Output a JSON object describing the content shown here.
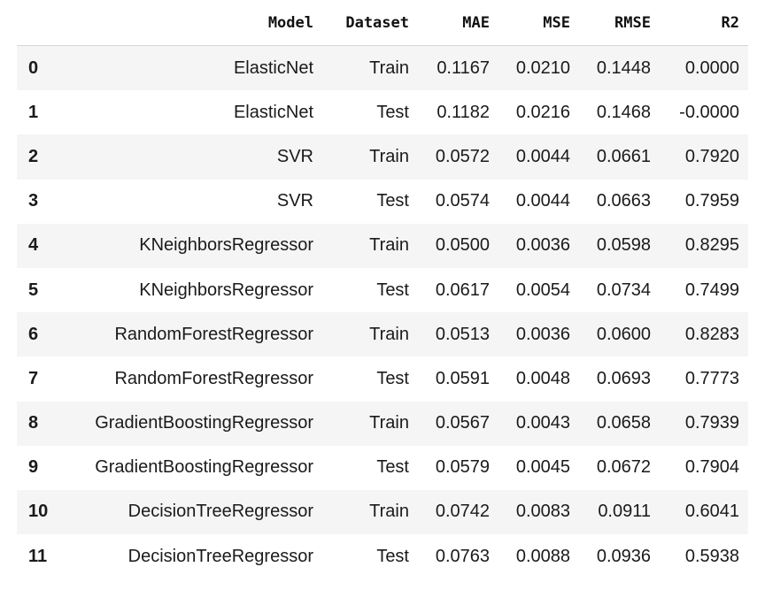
{
  "columns": [
    "",
    "Model",
    "Dataset",
    "MAE",
    "MSE",
    "RMSE",
    "R2"
  ],
  "rows": [
    {
      "index": "0",
      "model": "ElasticNet",
      "dataset": "Train",
      "mae": "0.1167",
      "mse": "0.0210",
      "rmse": "0.1448",
      "r2": "0.0000"
    },
    {
      "index": "1",
      "model": "ElasticNet",
      "dataset": "Test",
      "mae": "0.1182",
      "mse": "0.0216",
      "rmse": "0.1468",
      "r2": "-0.0000"
    },
    {
      "index": "2",
      "model": "SVR",
      "dataset": "Train",
      "mae": "0.0572",
      "mse": "0.0044",
      "rmse": "0.0661",
      "r2": "0.7920"
    },
    {
      "index": "3",
      "model": "SVR",
      "dataset": "Test",
      "mae": "0.0574",
      "mse": "0.0044",
      "rmse": "0.0663",
      "r2": "0.7959"
    },
    {
      "index": "4",
      "model": "KNeighborsRegressor",
      "dataset": "Train",
      "mae": "0.0500",
      "mse": "0.0036",
      "rmse": "0.0598",
      "r2": "0.8295"
    },
    {
      "index": "5",
      "model": "KNeighborsRegressor",
      "dataset": "Test",
      "mae": "0.0617",
      "mse": "0.0054",
      "rmse": "0.0734",
      "r2": "0.7499"
    },
    {
      "index": "6",
      "model": "RandomForestRegressor",
      "dataset": "Train",
      "mae": "0.0513",
      "mse": "0.0036",
      "rmse": "0.0600",
      "r2": "0.8283"
    },
    {
      "index": "7",
      "model": "RandomForestRegressor",
      "dataset": "Test",
      "mae": "0.0591",
      "mse": "0.0048",
      "rmse": "0.0693",
      "r2": "0.7773"
    },
    {
      "index": "8",
      "model": "GradientBoostingRegressor",
      "dataset": "Train",
      "mae": "0.0567",
      "mse": "0.0043",
      "rmse": "0.0658",
      "r2": "0.7939"
    },
    {
      "index": "9",
      "model": "GradientBoostingRegressor",
      "dataset": "Test",
      "mae": "0.0579",
      "mse": "0.0045",
      "rmse": "0.0672",
      "r2": "0.7904"
    },
    {
      "index": "10",
      "model": "DecisionTreeRegressor",
      "dataset": "Train",
      "mae": "0.0742",
      "mse": "0.0083",
      "rmse": "0.0911",
      "r2": "0.6041"
    },
    {
      "index": "11",
      "model": "DecisionTreeRegressor",
      "dataset": "Test",
      "mae": "0.0763",
      "mse": "0.0088",
      "rmse": "0.0936",
      "r2": "0.5938"
    }
  ]
}
